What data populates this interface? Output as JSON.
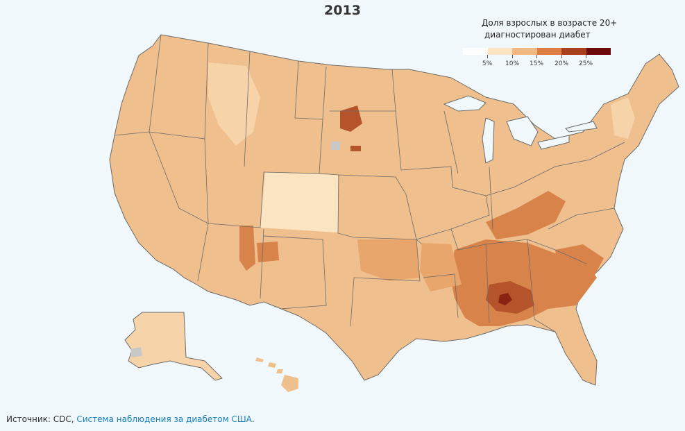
{
  "title": "2013",
  "legend": {
    "title_line1": "Доля взрослых в возрасте 20+",
    "title_line2": "диагностирован диабет",
    "colors": [
      "#ffffff",
      "#fce3c1",
      "#f0b983",
      "#dc7d44",
      "#a8401d",
      "#6b0a0a"
    ],
    "ticks": [
      "5%",
      "10%",
      "15%",
      "20%",
      "25%"
    ]
  },
  "source": {
    "prefix": "Источник: CDC, ",
    "link_text": "Система наблюдения за диабетом США",
    "suffix": "."
  },
  "map_colors": {
    "base": "#efbf8e",
    "light": "#f6d3a8",
    "lighter": "#fbe4c2",
    "mid": "#e8a56c",
    "dark": "#d8834a",
    "darker": "#b5542a",
    "darkest": "#8a2412",
    "nodata": "#c8c8c8",
    "border": "#6b6b6b"
  }
}
